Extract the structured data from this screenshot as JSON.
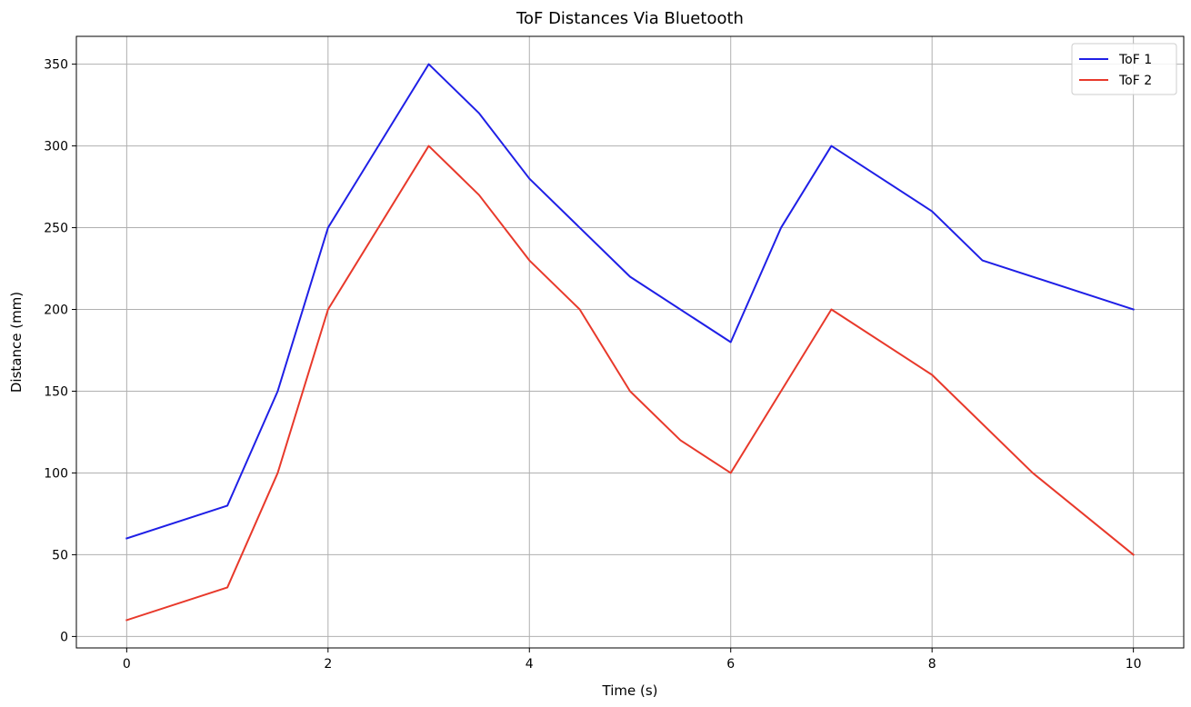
{
  "chart_data": {
    "type": "line",
    "title": "ToF Distances Via Bluetooth",
    "xlabel": "Time (s)",
    "ylabel": "Distance (mm)",
    "xlim": [
      -0.5,
      10.5
    ],
    "ylim": [
      -7,
      367
    ],
    "xticks": [
      0,
      2,
      4,
      6,
      8,
      10
    ],
    "yticks": [
      0,
      50,
      100,
      150,
      200,
      250,
      300,
      350
    ],
    "grid": true,
    "legend_position": "top-right",
    "series": [
      {
        "name": "ToF 1",
        "color": "#1f1fe6",
        "x": [
          0,
          1,
          1.5,
          2,
          3,
          3.5,
          4,
          5,
          6,
          6.5,
          7,
          8,
          8.5,
          10
        ],
        "y": [
          60,
          80,
          150,
          250,
          350,
          320,
          280,
          220,
          180,
          250,
          300,
          260,
          230,
          200
        ]
      },
      {
        "name": "ToF 2",
        "color": "#e8392b",
        "x": [
          0,
          1,
          1.5,
          2,
          3,
          3.5,
          4,
          4.5,
          5,
          5.5,
          6,
          7,
          8,
          9,
          10
        ],
        "y": [
          10,
          30,
          100,
          200,
          300,
          270,
          230,
          200,
          150,
          120,
          100,
          200,
          160,
          100,
          50
        ]
      }
    ]
  }
}
